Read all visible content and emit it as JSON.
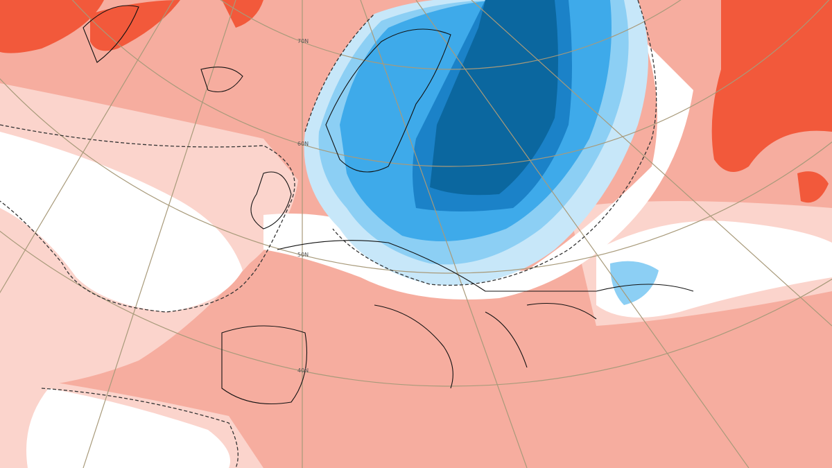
{
  "graticule_labels": [
    "70N",
    "60N",
    "50N",
    "40N"
  ]
}
